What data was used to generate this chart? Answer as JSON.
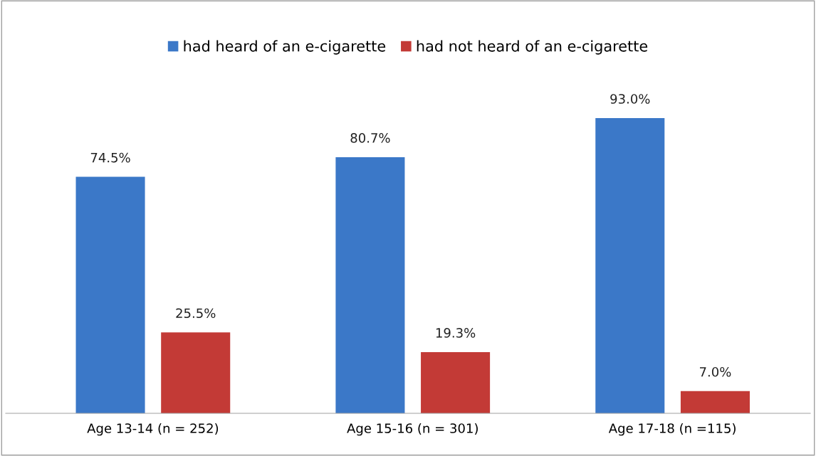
{
  "chart_data": {
    "type": "bar",
    "categories": [
      "Age 13-14 (n = 252)",
      "Age 15-16 (n = 301)",
      "Age 17-18 (n =115)"
    ],
    "series": [
      {
        "name": "had heard of an e-cigarette",
        "color": "#3b78c8",
        "values": [
          74.5,
          80.7,
          93.0
        ],
        "value_labels": [
          "74.5%",
          "80.7%",
          "93.0%"
        ]
      },
      {
        "name": "had not heard of an e-cigarette",
        "color": "#c33a36",
        "values": [
          25.5,
          19.3,
          7.0
        ],
        "value_labels": [
          "25.5%",
          "19.3%",
          "7.0%"
        ]
      }
    ],
    "legend": "top"
  }
}
